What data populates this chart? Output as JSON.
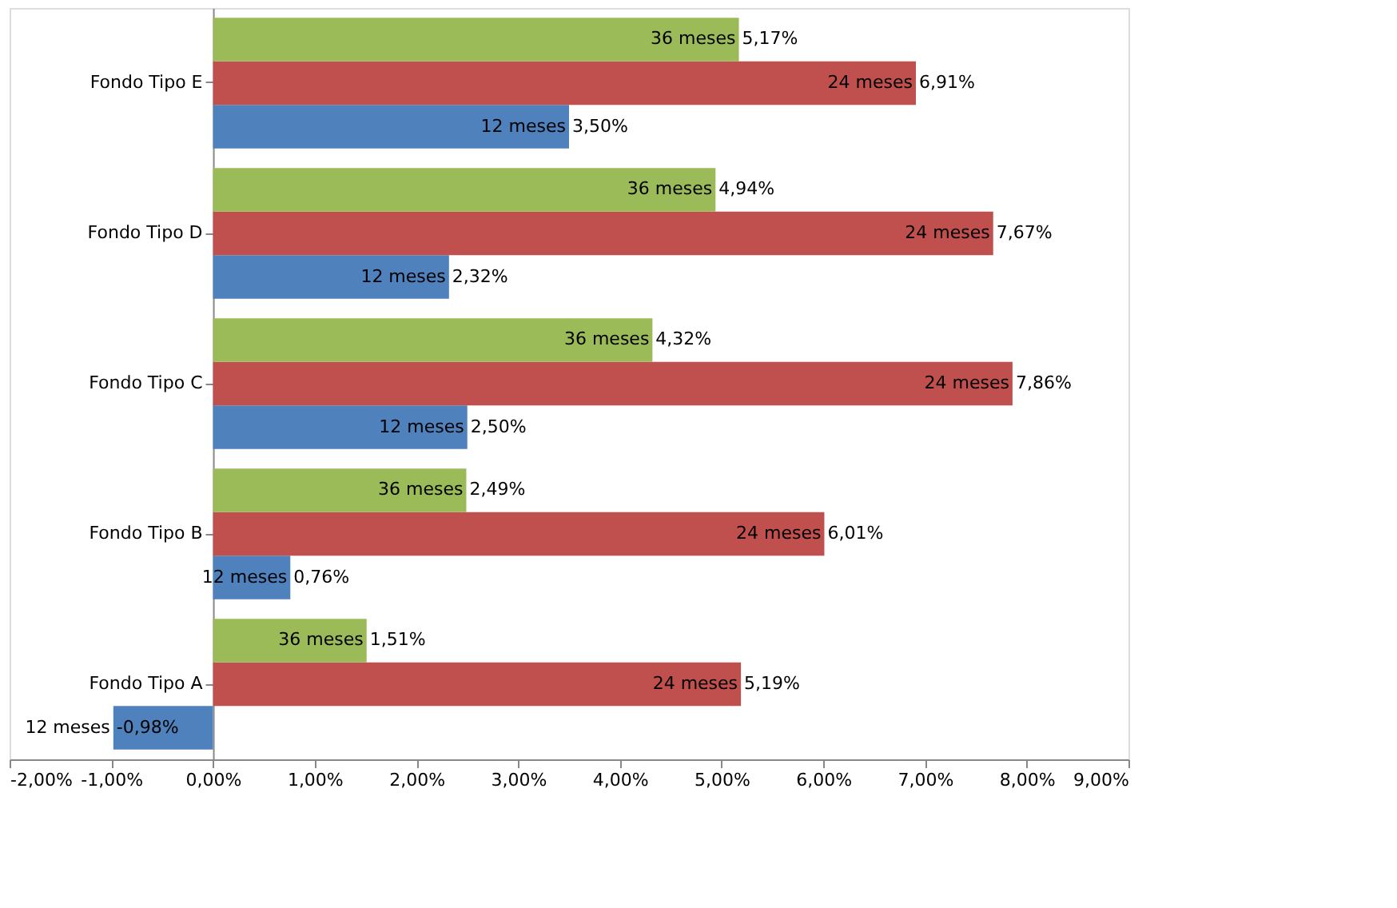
{
  "chart_data": {
    "type": "bar",
    "orientation": "horizontal",
    "categories": [
      "Fondo Tipo E",
      "Fondo Tipo D",
      "Fondo Tipo C",
      "Fondo Tipo B",
      "Fondo Tipo A"
    ],
    "series": [
      {
        "name": "12 meses",
        "color": "#4f81bd",
        "values": [
          3.5,
          2.32,
          2.5,
          0.76,
          -0.98
        ],
        "value_labels": [
          "3,50%",
          "2,32%",
          "2,50%",
          "0,76%",
          "-0,98%"
        ]
      },
      {
        "name": "24 meses",
        "color": "#c0504d",
        "values": [
          6.91,
          7.67,
          7.86,
          6.01,
          5.19
        ],
        "value_labels": [
          "6,91%",
          "7,67%",
          "7,86%",
          "6,01%",
          "5,19%"
        ]
      },
      {
        "name": "36 meses",
        "color": "#9bbb59",
        "values": [
          5.17,
          4.94,
          4.32,
          2.49,
          1.51
        ],
        "value_labels": [
          "5,17%",
          "4,94%",
          "4,32%",
          "2,49%",
          "1,51%"
        ]
      }
    ],
    "xlim": [
      -2,
      9
    ],
    "xticks": [
      {
        "value": -2,
        "label": "-2,00%"
      },
      {
        "value": -1,
        "label": "-1,00%"
      },
      {
        "value": 0,
        "label": "0,00%"
      },
      {
        "value": 1,
        "label": "1,00%"
      },
      {
        "value": 2,
        "label": "2,00%"
      },
      {
        "value": 3,
        "label": "3,00%"
      },
      {
        "value": 4,
        "label": "4,00%"
      },
      {
        "value": 5,
        "label": "5,00%"
      },
      {
        "value": 6,
        "label": "6,00%"
      },
      {
        "value": 7,
        "label": "7,00%"
      },
      {
        "value": 8,
        "label": "8,00%"
      },
      {
        "value": 9,
        "label": "9,00%"
      }
    ],
    "grid": false
  }
}
